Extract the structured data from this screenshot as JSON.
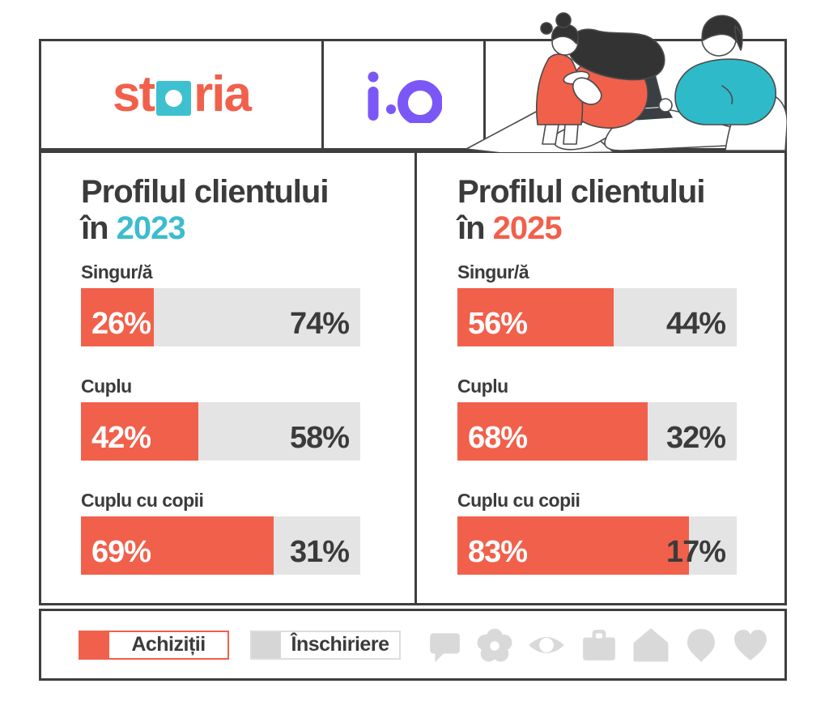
{
  "brand": {
    "storia_part1": "st",
    "storia_part2": "ria",
    "io_logo_text": "i·O"
  },
  "panels": [
    {
      "title_line1": "Profilul clientului",
      "title_line2_prefix": "în",
      "year": "2023",
      "rows": [
        {
          "label": "Singur/ă",
          "buy_pct": 26,
          "rent_pct": 74,
          "buy_label": "26%",
          "rent_label": "74%"
        },
        {
          "label": "Cuplu",
          "buy_pct": 42,
          "rent_pct": 58,
          "buy_label": "42%",
          "rent_label": "58%"
        },
        {
          "label": "Cuplu cu copii",
          "buy_pct": 69,
          "rent_pct": 31,
          "buy_label": "69%",
          "rent_label": "31%"
        }
      ]
    },
    {
      "title_line1": "Profilul clientului",
      "title_line2_prefix": "în",
      "year": "2025",
      "rows": [
        {
          "label": "Singur/ă",
          "buy_pct": 56,
          "rent_pct": 44,
          "buy_label": "56%",
          "rent_label": "44%"
        },
        {
          "label": "Cuplu",
          "buy_pct": 68,
          "rent_pct": 32,
          "buy_label": "68%",
          "rent_label": "32%"
        },
        {
          "label": "Cuplu cu copii",
          "buy_pct": 83,
          "rent_pct": 17,
          "buy_label": "83%",
          "rent_label": "17%"
        }
      ]
    }
  ],
  "legend": {
    "buy_label": "Achiziții",
    "rent_label": "Înschiriere",
    "icons": [
      "speech-bubble",
      "flower",
      "eye",
      "briefcase",
      "house",
      "map-pin",
      "heart"
    ]
  },
  "colors": {
    "accent_coral": "#F1604B",
    "storia_square_teal": "#3FC0D1",
    "year_2023_teal": "#3CBCCE",
    "year_2025_coral": "#F1604B",
    "io_purple": "#7B57F7",
    "bar_gray": "#E4E4E4",
    "text_dark": "#3B3B3B",
    "icon_gray": "#D9D9D9",
    "illustration_teal": "#2FBAC9"
  },
  "chart_data": [
    {
      "type": "bar",
      "title": "Profilul clientului în 2023",
      "orientation": "horizontal",
      "stacked": true,
      "unit": "%",
      "xlim": [
        0,
        100
      ],
      "categories": [
        "Singur/ă",
        "Cuplu",
        "Cuplu cu copii"
      ],
      "series": [
        {
          "name": "Achiziții",
          "color": "#F1604B",
          "values": [
            26,
            42,
            69
          ]
        },
        {
          "name": "Înschiriere",
          "color": "#E4E4E4",
          "values": [
            74,
            58,
            31
          ]
        }
      ],
      "legend_position": "bottom",
      "grid": false
    },
    {
      "type": "bar",
      "title": "Profilul clientului în 2025",
      "orientation": "horizontal",
      "stacked": true,
      "unit": "%",
      "xlim": [
        0,
        100
      ],
      "categories": [
        "Singur/ă",
        "Cuplu",
        "Cuplu cu copii"
      ],
      "series": [
        {
          "name": "Achiziții",
          "color": "#F1604B",
          "values": [
            56,
            68,
            83
          ]
        },
        {
          "name": "Înschiriere",
          "color": "#E4E4E4",
          "values": [
            44,
            32,
            17
          ]
        }
      ],
      "legend_position": "bottom",
      "grid": false
    }
  ]
}
